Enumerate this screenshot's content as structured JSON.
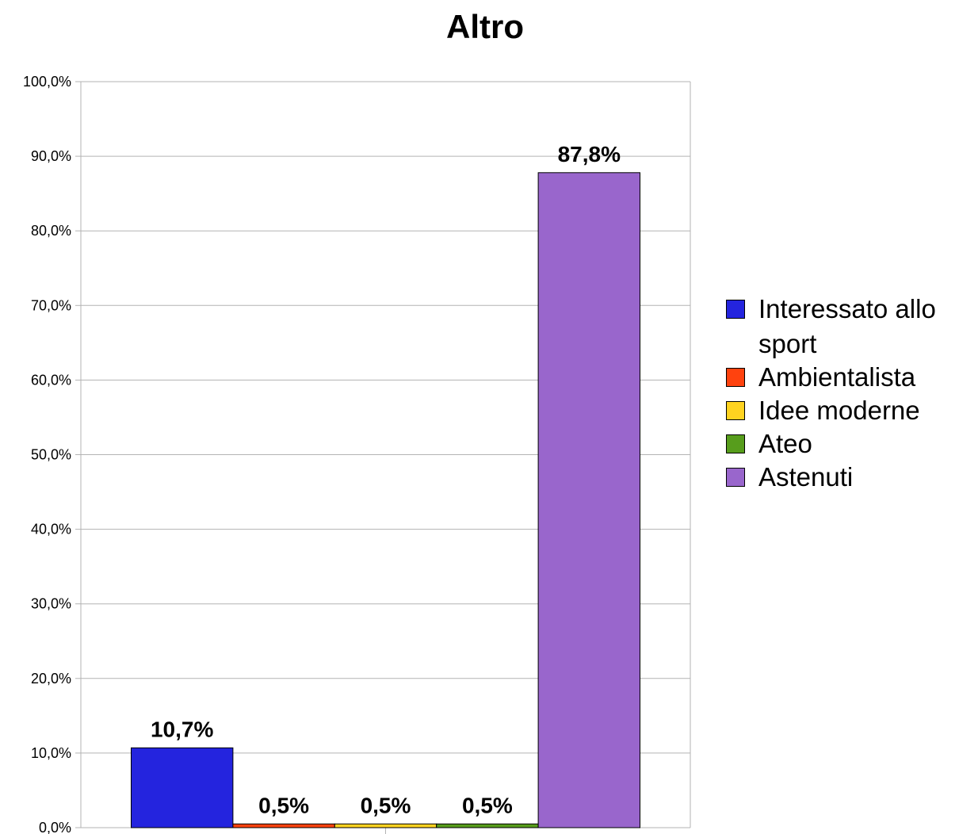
{
  "chart_data": {
    "type": "bar",
    "title": "Altro",
    "categories": [
      ""
    ],
    "series": [
      {
        "name": "Interessato allo sport",
        "values": [
          10.7
        ],
        "label": "10,7%",
        "color": "#2424de"
      },
      {
        "name": "Ambientalista",
        "values": [
          0.5
        ],
        "label": "0,5%",
        "color": "#ff420e"
      },
      {
        "name": "Idee moderne",
        "values": [
          0.5
        ],
        "label": "0,5%",
        "color": "#ffd320"
      },
      {
        "name": "Ateo",
        "values": [
          0.5
        ],
        "label": "0,5%",
        "color": "#579d1c"
      },
      {
        "name": "Astenuti",
        "values": [
          87.8
        ],
        "label": "87,8%",
        "color": "#9966cc"
      }
    ],
    "ylim": [
      0,
      100
    ],
    "yticks": [
      {
        "value": 0,
        "label": "0,0%"
      },
      {
        "value": 10,
        "label": "10,0%"
      },
      {
        "value": 20,
        "label": "20,0%"
      },
      {
        "value": 30,
        "label": "30,0%"
      },
      {
        "value": 40,
        "label": "40,0%"
      },
      {
        "value": 50,
        "label": "50,0%"
      },
      {
        "value": 60,
        "label": "60,0%"
      },
      {
        "value": 70,
        "label": "70,0%"
      },
      {
        "value": 80,
        "label": "80,0%"
      },
      {
        "value": 90,
        "label": "90,0%"
      },
      {
        "value": 100,
        "label": "100,0%"
      }
    ],
    "grid": true,
    "legend_position": "right"
  }
}
